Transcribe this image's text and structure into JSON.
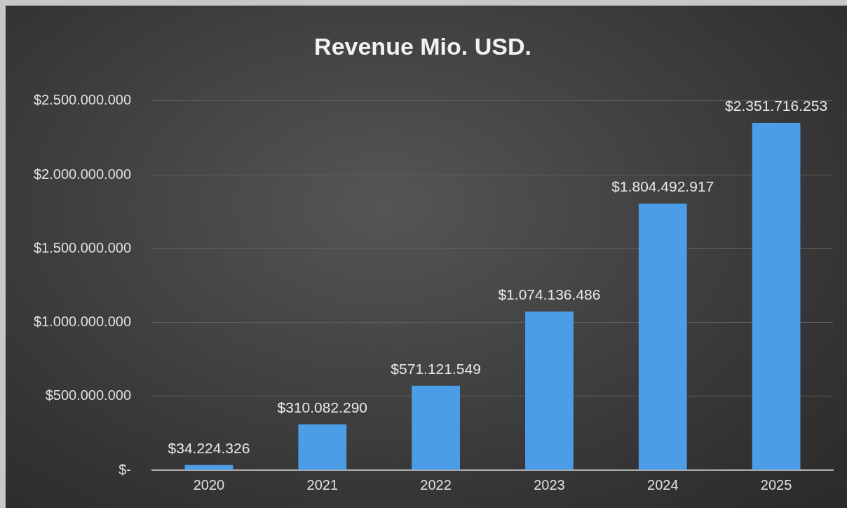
{
  "chart_data": {
    "type": "bar",
    "title": "Revenue Mio. USD.",
    "categories": [
      "2020",
      "2021",
      "2022",
      "2023",
      "2024",
      "2025"
    ],
    "values": [
      34224326,
      310082290,
      571121549,
      1074136486,
      1804492917,
      2351716253
    ],
    "value_labels": [
      "$34.224.326",
      "$310.082.290",
      "$571.121.549",
      "$1.074.136.486",
      "$1.804.492.917",
      "$2.351.716.253"
    ],
    "color": "#4a9de6",
    "ylim": [
      0,
      2500000000
    ],
    "yticks": [
      {
        "value": 0,
        "label": "$-"
      },
      {
        "value": 500000000,
        "label": "$500.000.000"
      },
      {
        "value": 1000000000,
        "label": "$1.000.000.000"
      },
      {
        "value": 1500000000,
        "label": "$1.500.000.000"
      },
      {
        "value": 2000000000,
        "label": "$2.000.000.000"
      },
      {
        "value": 2500000000,
        "label": "$2.500.000.000"
      }
    ],
    "grid": "y"
  }
}
